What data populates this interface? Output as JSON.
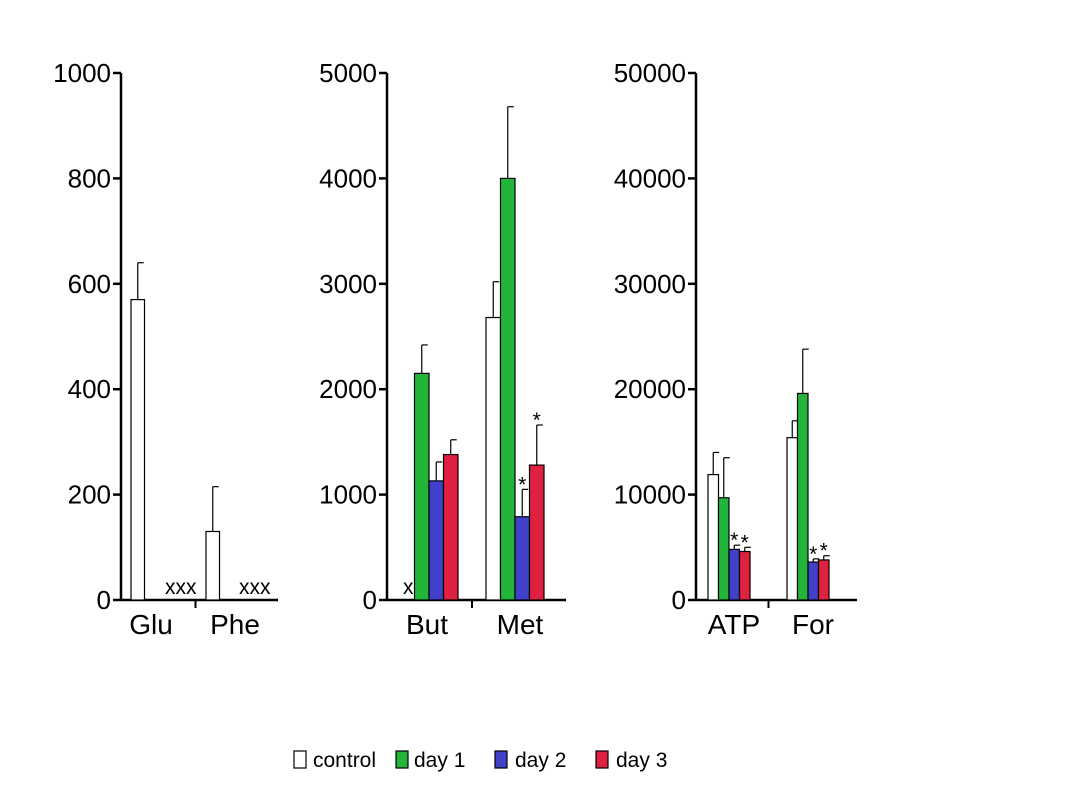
{
  "colors": {
    "control": "#ffffff",
    "day1": "#22b53a",
    "day2": "#4040c8",
    "day3": "#e02040",
    "stroke": "#000000"
  },
  "legend": [
    {
      "key": "control",
      "label": "control"
    },
    {
      "key": "day1",
      "label": "day 1"
    },
    {
      "key": "day2",
      "label": "day 2"
    },
    {
      "key": "day3",
      "label": "day 3"
    }
  ],
  "chart_data": [
    {
      "type": "bar",
      "title": "",
      "ylim": [
        0,
        1000
      ],
      "yticks": [
        "0",
        "200",
        "400",
        "600",
        "800",
        "1000"
      ],
      "categories": [
        "Glu",
        "Phe"
      ],
      "series": [
        {
          "name": "control",
          "values": [
            570,
            130
          ],
          "errors": [
            70,
            85
          ]
        },
        {
          "name": "day 1",
          "values": [
            0,
            0
          ],
          "errors": [
            0,
            0
          ]
        },
        {
          "name": "day 2",
          "values": [
            0,
            0
          ],
          "errors": [
            0,
            0
          ]
        },
        {
          "name": "day 3",
          "values": [
            0,
            0
          ],
          "errors": [
            0,
            0
          ]
        }
      ],
      "annotations": [
        {
          "category": "Glu",
          "text": "xxx"
        },
        {
          "category": "Phe",
          "text": "xxx"
        }
      ]
    },
    {
      "type": "bar",
      "title": "",
      "ylim": [
        0,
        5000
      ],
      "yticks": [
        "0",
        "1000",
        "2000",
        "3000",
        "4000",
        "5000"
      ],
      "categories": [
        "But",
        "Met"
      ],
      "series": [
        {
          "name": "control",
          "values": [
            0,
            2680
          ],
          "errors": [
            0,
            340
          ]
        },
        {
          "name": "day 1",
          "values": [
            2150,
            4000
          ],
          "errors": [
            270,
            680
          ]
        },
        {
          "name": "day 2",
          "values": [
            1130,
            790
          ],
          "errors": [
            180,
            260
          ]
        },
        {
          "name": "day 3",
          "values": [
            1380,
            1280
          ],
          "errors": [
            140,
            380
          ]
        }
      ],
      "annotations": [
        {
          "category": "But",
          "text": "x"
        },
        {
          "category": "Met",
          "series": "day 2",
          "text": "*"
        },
        {
          "category": "Met",
          "series": "day 3",
          "text": "*"
        }
      ]
    },
    {
      "type": "bar",
      "title": "",
      "ylim": [
        0,
        50000
      ],
      "yticks": [
        "0",
        "10000",
        "20000",
        "30000",
        "40000",
        "50000"
      ],
      "categories": [
        "ATP",
        "For"
      ],
      "series": [
        {
          "name": "control",
          "values": [
            11900,
            15400
          ],
          "errors": [
            2100,
            1600
          ]
        },
        {
          "name": "day 1",
          "values": [
            9700,
            19600
          ],
          "errors": [
            3800,
            4200
          ]
        },
        {
          "name": "day 2",
          "values": [
            4800,
            3600
          ],
          "errors": [
            400,
            300
          ]
        },
        {
          "name": "day 3",
          "values": [
            4600,
            3800
          ],
          "errors": [
            400,
            400
          ]
        }
      ],
      "annotations": [
        {
          "category": "ATP",
          "series": "day 2",
          "text": "*"
        },
        {
          "category": "ATP",
          "series": "day 3",
          "text": "*"
        },
        {
          "category": "For",
          "series": "day 2",
          "text": "*"
        },
        {
          "category": "For",
          "series": "day 3",
          "text": "*"
        }
      ]
    }
  ]
}
